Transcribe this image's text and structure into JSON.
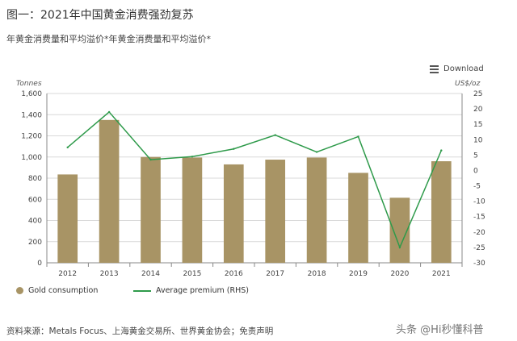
{
  "figure_title": "图一：2021年中国黄金消费强劲复苏",
  "subtitle": "年黄金消费量和平均溢价*年黄金消费量和平均溢价*",
  "download_label": "Download",
  "source_text": "资料来源：Metals Focus、上海黄金交易所、世界黄金协会；免责声明",
  "watermark_text": "头条 @Hi秒懂科普",
  "colors": {
    "bar": "#a89465",
    "line": "#2e9a4a",
    "grid": "#d9d9d9",
    "axis": "#888888"
  },
  "chart_data": {
    "type": "bar",
    "categories": [
      "2012",
      "2013",
      "2014",
      "2015",
      "2016",
      "2017",
      "2018",
      "2019",
      "2020",
      "2021"
    ],
    "y_left_unit": "Tonnes",
    "y_right_unit": "US$/oz",
    "ylim": [
      0,
      1600
    ],
    "ylim_right": [
      -30,
      25
    ],
    "yticks_left": [
      "0",
      "200",
      "400",
      "600",
      "800",
      "1,000",
      "1,200",
      "1,400",
      "1,600"
    ],
    "yticks_right": [
      "25",
      "20",
      "15",
      "10",
      "5",
      "0",
      "-5",
      "-10",
      "-15",
      "-20",
      "-25",
      "-30"
    ],
    "grid": true,
    "legend_position": "bottom-left",
    "series": [
      {
        "name": "Gold consumption",
        "kind": "bar",
        "axis": "left",
        "values": [
          835,
          1350,
          1000,
          995,
          930,
          975,
          995,
          850,
          615,
          960
        ]
      },
      {
        "name": "Average premium (RHS)",
        "kind": "line",
        "axis": "right",
        "values": [
          7.5,
          19,
          3.5,
          4.5,
          7,
          11.5,
          6,
          11,
          -25,
          6.5
        ]
      }
    ]
  }
}
